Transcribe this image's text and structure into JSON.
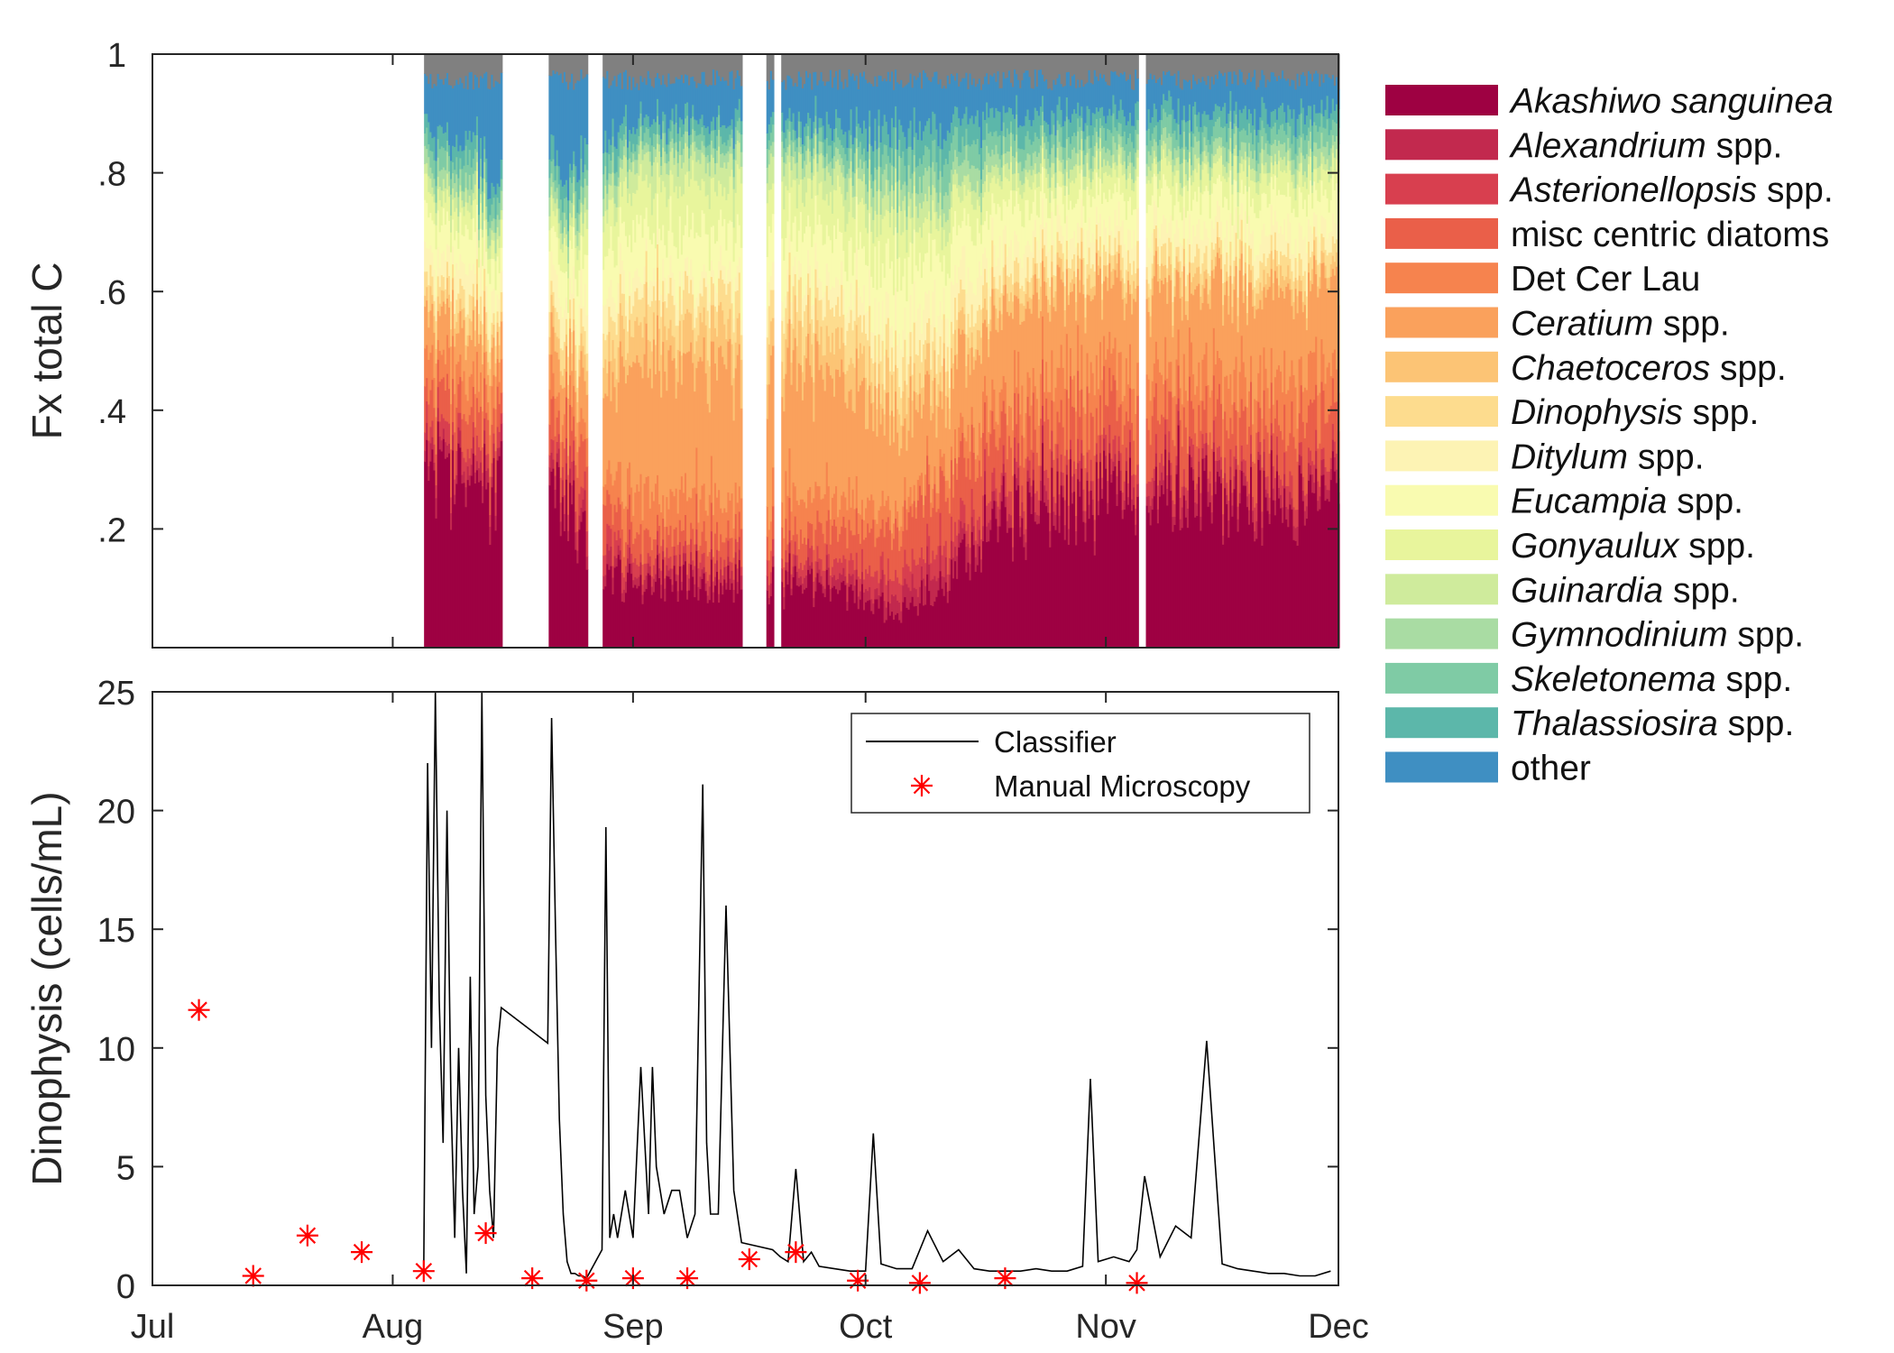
{
  "chart_data": [
    {
      "type": "area",
      "subtype": "stacked-fraction",
      "ylabel": "Fx total C",
      "ytick_labels": [
        "1",
        ".8",
        ".6",
        ".4",
        ".2"
      ],
      "yticks": [
        1,
        0.8,
        0.6,
        0.4,
        0.2
      ],
      "ylim": [
        0,
        1
      ],
      "xlim": [
        "Jul 1",
        "Dec 1"
      ],
      "x_tick_labels": [
        "Jul",
        "Aug",
        "Sep",
        "Oct",
        "Nov",
        "Dec"
      ],
      "data_gaps_day_of_year": [
        [
          182,
          217
        ],
        [
          227,
          233
        ],
        [
          238,
          240
        ],
        [
          258,
          261
        ],
        [
          262,
          263
        ],
        [
          309,
          310
        ]
      ],
      "colors": {
        "top_band": "#808080",
        "series": [
          "#9e0142",
          "#c2294e",
          "#d83f4f",
          "#ea5f49",
          "#f6834e",
          "#faa15c",
          "#fcc475",
          "#fddc8e",
          "#fdf3b4",
          "#f9fbb0",
          "#e8f59c",
          "#cfeb9c",
          "#a9dca3",
          "#7fcba5",
          "#5cb7aa",
          "#3f8fc2"
        ]
      },
      "legend": {
        "position": "outside-right",
        "entries": [
          {
            "italic": "Akashiwo sanguinea",
            "rest": ""
          },
          {
            "italic": "Alexandrium",
            "rest": " spp."
          },
          {
            "italic": "Asterionellopsis",
            "rest": " spp."
          },
          {
            "italic": "",
            "rest": "misc centric diatoms"
          },
          {
            "italic": "",
            "rest": "Det Cer Lau"
          },
          {
            "italic": "Ceratium",
            "rest": " spp."
          },
          {
            "italic": "Chaetoceros",
            "rest": " spp."
          },
          {
            "italic": "Dinophysis",
            "rest": " spp."
          },
          {
            "italic": "Ditylum",
            "rest": " spp."
          },
          {
            "italic": "Eucampia",
            "rest": " spp."
          },
          {
            "italic": "Gonyaulux",
            "rest": " spp."
          },
          {
            "italic": "Guinardia",
            "rest": " spp."
          },
          {
            "italic": "Gymnodinium",
            "rest": " spp."
          },
          {
            "italic": "Skeletonema",
            "rest": " spp."
          },
          {
            "italic": "Thalassiosira",
            "rest": " spp."
          },
          {
            "italic": "",
            "rest": "other"
          }
        ]
      }
    },
    {
      "type": "line",
      "ylabel": "Dinophysis (cells/mL)",
      "ylim": [
        0,
        25
      ],
      "yticks": [
        0,
        5,
        10,
        15,
        20,
        25
      ],
      "ytick_labels": [
        "0",
        "5",
        "10",
        "15",
        "20",
        "25"
      ],
      "x_tick_labels": [
        "Jul",
        "Aug",
        "Sep",
        "Oct",
        "Nov",
        "Dec"
      ],
      "legend_position": "top-right",
      "series": [
        {
          "name": "Classifier",
          "color": "#000000",
          "x_day_of_year": [
            217,
            217.5,
            218,
            218.5,
            219,
            219.5,
            220,
            220.5,
            221,
            221.5,
            222,
            222.5,
            223,
            223.5,
            224,
            224.5,
            225,
            225.5,
            226,
            226.5,
            227,
            233,
            233.5,
            234,
            234.5,
            235,
            235.5,
            236,
            236.5,
            237,
            237.5,
            238,
            240,
            240.5,
            241,
            241.5,
            242,
            243,
            244,
            245,
            246,
            246.5,
            247,
            248,
            249,
            250,
            251,
            252,
            253,
            253.5,
            254,
            255,
            256,
            257,
            258,
            262,
            263,
            264,
            265,
            266,
            267,
            268,
            270,
            272,
            274,
            275,
            276,
            278,
            280,
            282,
            284,
            286,
            288,
            290,
            292,
            294,
            296,
            298,
            300,
            302,
            303,
            304,
            306,
            308,
            309,
            310,
            312,
            314,
            316,
            318,
            320,
            322,
            324,
            326,
            328,
            330,
            332,
            334
          ],
          "y": [
            0.5,
            22,
            10,
            25,
            12,
            6,
            20,
            8,
            2,
            10,
            4,
            0.5,
            13,
            3,
            5,
            25,
            8,
            4,
            2,
            10,
            11.7,
            10.2,
            23.9,
            15,
            7,
            3,
            1,
            0.5,
            0.5,
            0.4,
            0.4,
            0.3,
            1.5,
            19.3,
            2,
            3,
            2,
            4,
            2,
            9.2,
            3,
            9.2,
            5,
            3,
            4,
            4,
            2,
            3,
            21.1,
            6,
            3,
            3,
            16,
            4,
            1.8,
            1.5,
            1.2,
            1,
            4.9,
            1,
            1.4,
            0.8,
            0.7,
            0.6,
            0.6,
            6.4,
            0.9,
            0.7,
            0.7,
            2.3,
            1,
            1.5,
            0.7,
            0.6,
            0.6,
            0.6,
            0.7,
            0.6,
            0.6,
            0.8,
            8.7,
            1,
            1.2,
            1,
            1.5,
            4.6,
            1.2,
            2.5,
            2,
            10.3,
            0.9,
            0.7,
            0.6,
            0.5,
            0.5,
            0.4,
            0.4,
            0.6
          ]
        },
        {
          "name": "Manual Microscopy",
          "color": "#ff0000",
          "marker": "asterisk",
          "x_day_of_year": [
            188,
            195,
            202,
            209,
            217,
            225,
            231,
            238,
            244,
            251,
            259,
            265,
            273,
            281,
            292,
            309
          ],
          "y": [
            11.6,
            0.4,
            2.1,
            1.4,
            0.6,
            2.2,
            0.3,
            0.2,
            0.3,
            0.3,
            1.1,
            1.4,
            0.2,
            0.1,
            0.3,
            0.1
          ]
        }
      ]
    }
  ]
}
